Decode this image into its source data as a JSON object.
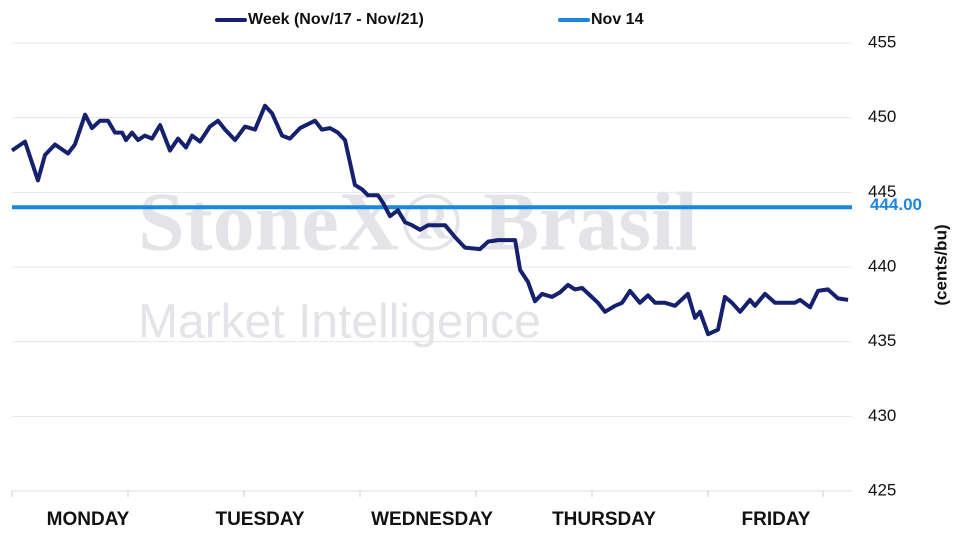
{
  "chart_data": {
    "type": "line",
    "watermark": [
      "StoneX® Brasil",
      "Market Intelligence"
    ],
    "y_axis_label": "(cents/bu)",
    "xlim": [
      0,
      5
    ],
    "xticks": [
      {
        "value": 0.5,
        "label": "MONDAY"
      },
      {
        "value": 1.5,
        "label": "TUESDAY"
      },
      {
        "value": 2.5,
        "label": "WEDNESDAY"
      },
      {
        "value": 3.5,
        "label": "THURSDAY"
      },
      {
        "value": 4.5,
        "label": "FRIDAY"
      }
    ],
    "ylim": [
      425,
      455
    ],
    "yticks": [
      425,
      430,
      435,
      440,
      445,
      450,
      455
    ],
    "grid": true,
    "x": [
      0.058,
      0.134,
      0.209,
      0.25,
      0.308,
      0.384,
      0.424,
      0.483,
      0.523,
      0.57,
      0.616,
      0.657,
      0.698,
      0.721,
      0.756,
      0.791,
      0.831,
      0.872,
      0.919,
      0.977,
      1.023,
      1.07,
      1.105,
      1.151,
      1.209,
      1.256,
      1.297,
      1.355,
      1.413,
      1.471,
      1.529,
      1.57,
      1.628,
      1.674,
      1.733,
      1.82,
      1.86,
      1.907,
      1.953,
      1.994,
      2.023,
      2.052,
      2.093,
      2.128,
      2.186,
      2.215,
      2.256,
      2.302,
      2.343,
      2.384,
      2.43,
      2.477,
      2.576,
      2.634,
      2.692,
      2.779,
      2.826,
      2.884,
      2.983,
      3.012,
      3.058,
      3.099,
      3.14,
      3.198,
      3.244,
      3.291,
      3.331,
      3.372,
      3.419,
      3.465,
      3.506,
      3.564,
      3.605,
      3.651,
      3.709,
      3.756,
      3.797,
      3.855,
      3.913,
      3.988,
      4.029,
      4.058,
      4.105,
      4.163,
      4.203,
      4.244,
      4.291,
      4.349,
      4.378,
      4.436,
      4.494,
      4.552,
      4.61,
      4.64,
      4.698,
      4.744,
      4.802,
      4.86,
      4.919
    ],
    "series": [
      {
        "name": "Week (Nov/17 - Nov/21)",
        "color": "#15206e",
        "values": [
          447.8,
          448.4,
          445.8,
          447.5,
          448.2,
          447.6,
          448.2,
          450.2,
          449.3,
          449.8,
          449.8,
          449.0,
          449.0,
          448.5,
          449.0,
          448.5,
          448.8,
          448.6,
          449.5,
          447.8,
          448.6,
          448.0,
          448.8,
          448.4,
          449.4,
          449.8,
          449.2,
          448.5,
          449.4,
          449.2,
          450.8,
          450.3,
          448.8,
          448.6,
          449.3,
          449.8,
          449.2,
          449.3,
          449.0,
          448.5,
          447.0,
          445.5,
          445.2,
          444.8,
          444.8,
          444.3,
          443.4,
          443.8,
          443.0,
          442.8,
          442.5,
          442.8,
          442.8,
          442.0,
          441.3,
          441.2,
          441.7,
          441.8,
          441.8,
          439.8,
          439.0,
          437.7,
          438.2,
          438.0,
          438.3,
          438.8,
          438.5,
          438.6,
          438.1,
          437.6,
          437.0,
          437.4,
          437.6,
          438.4,
          437.6,
          438.1,
          437.6,
          437.6,
          437.4,
          438.2,
          436.6,
          437.0,
          435.5,
          435.8,
          438.0,
          437.6,
          437.0,
          437.8,
          437.4,
          438.2,
          437.6,
          437.6,
          437.6,
          437.8,
          437.3,
          438.4,
          438.5,
          437.9,
          437.8
        ]
      }
    ],
    "reference_line": {
      "name": "Nov 14",
      "value": 444,
      "label": "444.00",
      "color": "#1a86e0"
    }
  }
}
